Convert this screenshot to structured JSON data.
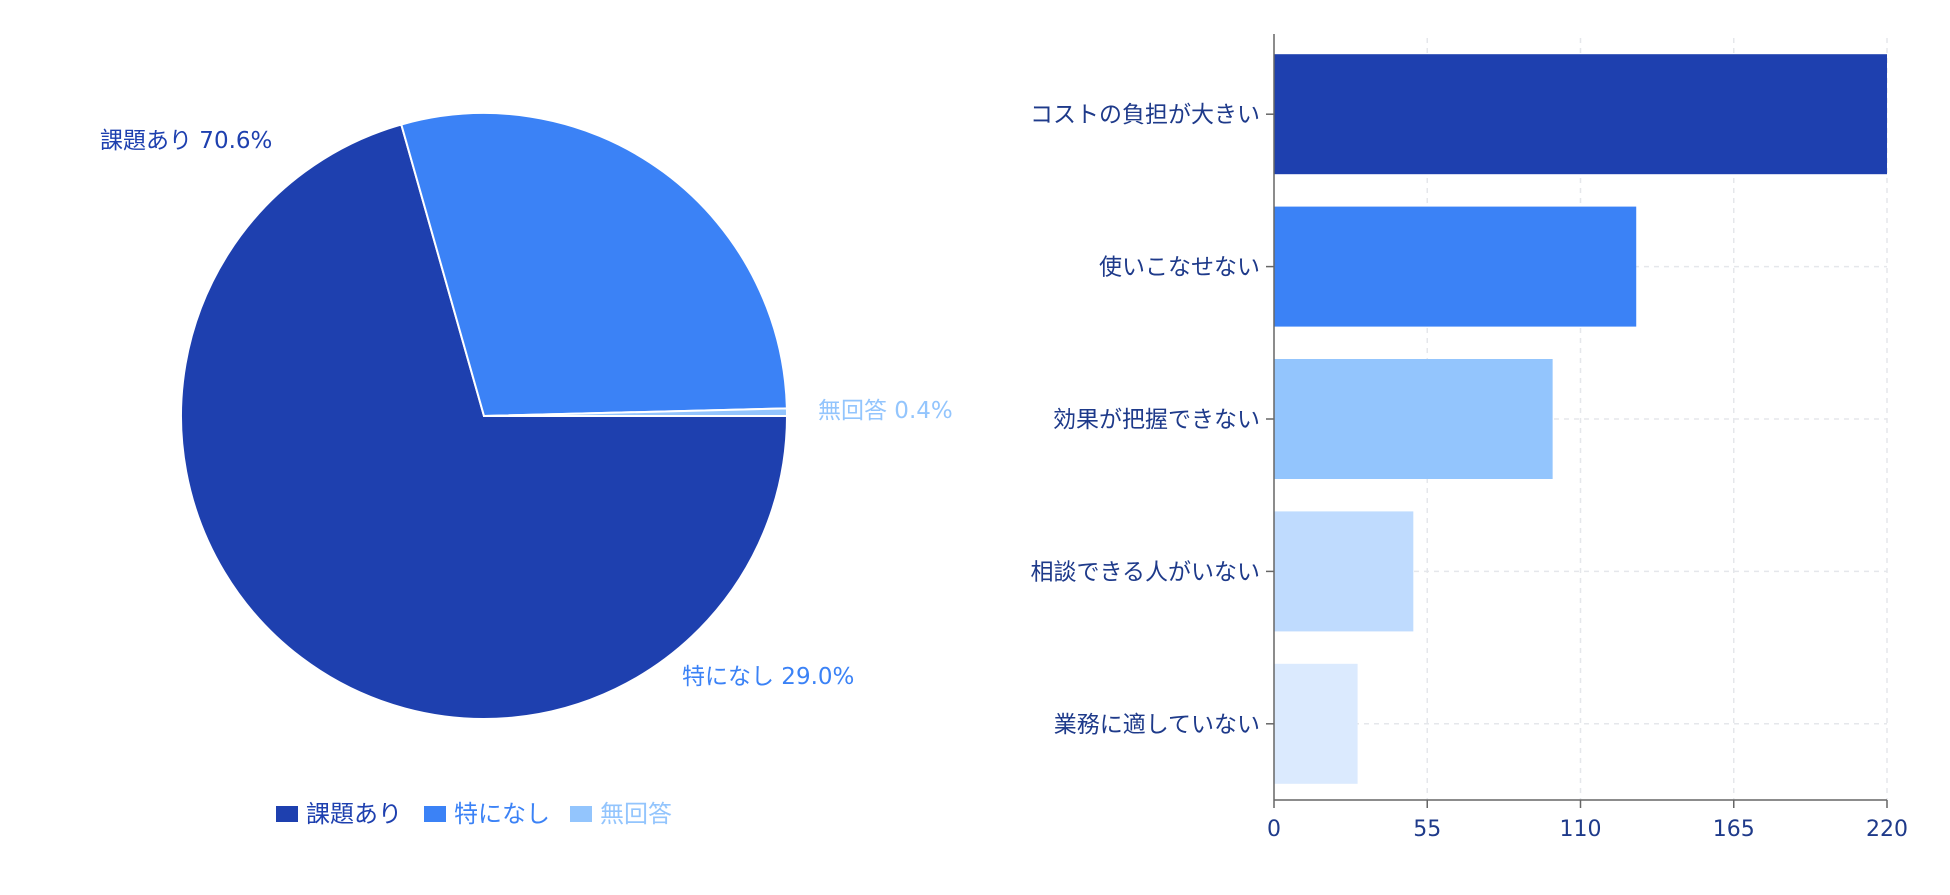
{
  "chart_data": [
    {
      "type": "pie",
      "slices": [
        {
          "name": "課題あり",
          "label": "課題あり 70.6%",
          "value": 70.6,
          "color": "#1e40af"
        },
        {
          "name": "特になし",
          "label": "特になし 29.0%",
          "value": 29.0,
          "color": "#3b82f6"
        },
        {
          "name": "無回答",
          "label": "無回答 0.4%",
          "value": 0.4,
          "color": "#93c5fd"
        }
      ],
      "legend": [
        "課題あり",
        "特になし",
        "無回答"
      ],
      "legend_position": "bottom"
    },
    {
      "type": "bar",
      "orientation": "horizontal",
      "categories": [
        "コストの負担が大きい",
        "使いこなせない",
        "効果が把握できない",
        "相談できる人がいない",
        "業務に適していない"
      ],
      "values": [
        220,
        130,
        100,
        50,
        30
      ],
      "colors": [
        "#1e40af",
        "#3b82f6",
        "#93c5fd",
        "#bfdbfe",
        "#dbeafe"
      ],
      "xlim": [
        0,
        220
      ],
      "ticks": [
        "0",
        "55",
        "110",
        "165",
        "220"
      ],
      "grid": true
    }
  ]
}
